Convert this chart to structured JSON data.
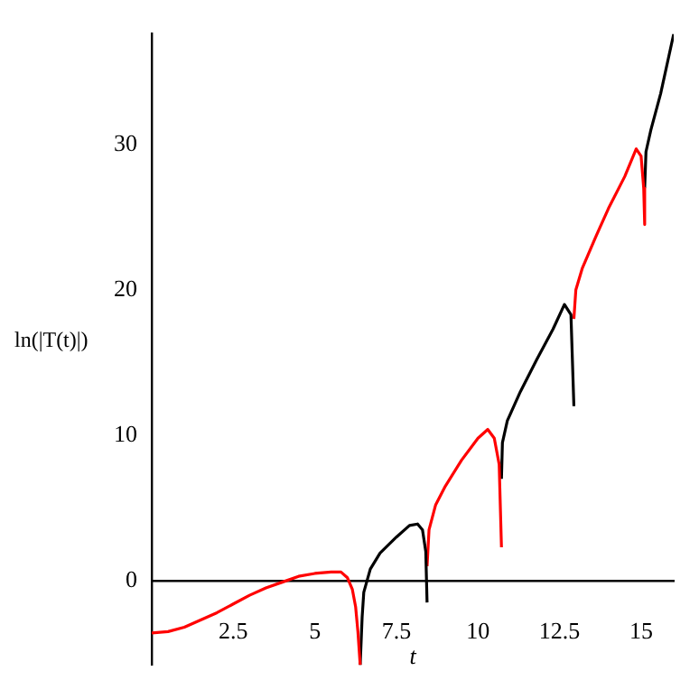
{
  "chart_data": {
    "type": "line",
    "xlabel": "t",
    "ylabel": "ln(|T(t)|)",
    "xlim": [
      0,
      16
    ],
    "ylim": [
      -5.8,
      37.6
    ],
    "xticks": [
      2.5,
      5,
      7.5,
      10,
      12.5,
      15
    ],
    "yticks": [
      0,
      10,
      20,
      30
    ],
    "grid": false,
    "legend": false,
    "series": [
      {
        "color": "#ff0000",
        "x": [
          0,
          0.5,
          1,
          1.5,
          2,
          2.5,
          3,
          3.5,
          4,
          4.5,
          5,
          5.5,
          5.8,
          6.0,
          6.15,
          6.25,
          6.32,
          6.39
        ],
        "values": [
          -3.6,
          -3.5,
          -3.2,
          -2.7,
          -2.2,
          -1.6,
          -1.0,
          -0.5,
          -0.1,
          0.3,
          0.5,
          0.6,
          0.6,
          0.2,
          -0.6,
          -1.8,
          -3.5,
          -5.8
        ]
      },
      {
        "color": "#000000",
        "x": [
          6.39,
          6.45,
          6.5,
          6.7,
          7.0,
          7.5,
          7.9,
          8.15,
          8.3,
          8.4,
          8.44
        ],
        "values": [
          -5.8,
          -2.5,
          -0.8,
          0.8,
          1.9,
          3.0,
          3.8,
          3.9,
          3.5,
          2.0,
          -1.5
        ]
      },
      {
        "color": "#ff0000",
        "x": [
          8.44,
          8.5,
          8.7,
          9.0,
          9.5,
          10.0,
          10.3,
          10.5,
          10.65,
          10.72
        ],
        "values": [
          1.0,
          3.5,
          5.2,
          6.5,
          8.3,
          9.8,
          10.4,
          9.8,
          8.0,
          2.3
        ]
      },
      {
        "color": "#000000",
        "x": [
          10.72,
          10.75,
          10.9,
          11.3,
          11.8,
          12.3,
          12.65,
          12.85,
          12.94
        ],
        "values": [
          7.0,
          9.5,
          11.0,
          13.0,
          15.2,
          17.3,
          19.0,
          18.3,
          12.0
        ]
      },
      {
        "color": "#ff0000",
        "x": [
          12.94,
          13.0,
          13.2,
          13.6,
          14.0,
          14.5,
          14.85,
          15.0,
          15.08,
          15.11
        ],
        "values": [
          18.0,
          20.0,
          21.5,
          23.6,
          25.6,
          27.8,
          29.7,
          29.2,
          27.0,
          24.5
        ]
      },
      {
        "color": "#000000",
        "x": [
          15.11,
          15.15,
          15.3,
          15.6,
          16.0
        ],
        "values": [
          27.0,
          29.5,
          31.0,
          33.5,
          37.6
        ]
      }
    ]
  }
}
